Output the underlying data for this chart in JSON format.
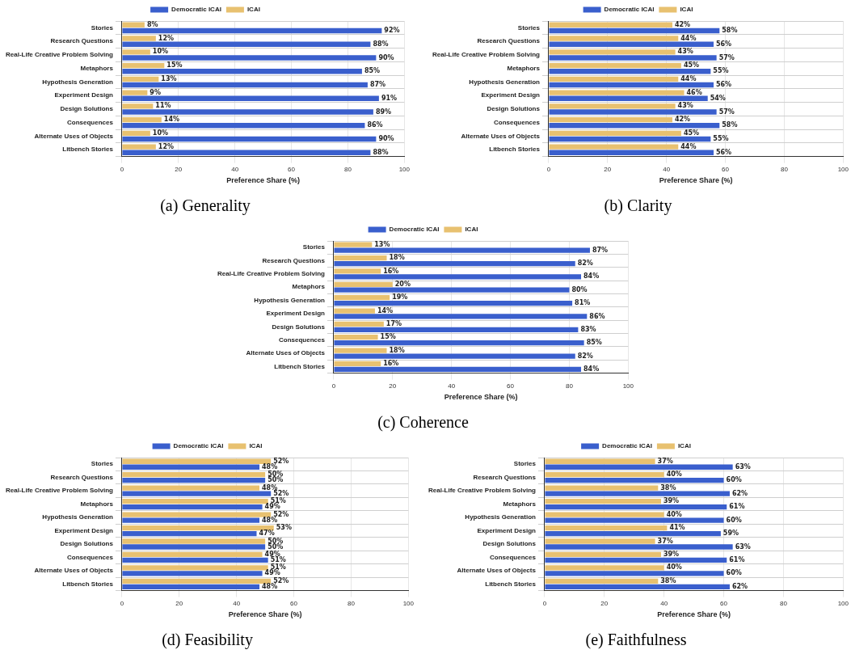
{
  "chart_data": [
    {
      "type": "bar",
      "orientation": "horizontal",
      "title": "(a) Generality",
      "xlabel": "Preference Share (%)",
      "categories": [
        "Stories",
        "Research Questions",
        "Real-Life Creative Problem Solving",
        "Metaphors",
        "Hypothesis Generation",
        "Experiment Design",
        "Design Solutions",
        "Consequences",
        "Alternate Uses of Objects",
        "Litbench Stories"
      ],
      "xlim": [
        0,
        100
      ],
      "xticks": [
        0,
        20,
        40,
        60,
        80,
        100
      ],
      "grid": true,
      "legend": "top",
      "series": [
        {
          "name": "Democratic ICAI",
          "color": "#3a5fcd",
          "values": [
            92,
            88,
            90,
            85,
            87,
            91,
            89,
            86,
            90,
            88
          ],
          "value_labels": [
            "92%",
            "88%",
            "90%",
            "85%",
            "87%",
            "91%",
            "89%",
            "86%",
            "90%",
            "88%"
          ]
        },
        {
          "name": "ICAI",
          "color": "#e8c170",
          "values": [
            8,
            12,
            10,
            15,
            13,
            9,
            11,
            14,
            10,
            12
          ],
          "value_labels": [
            "8%",
            "12%",
            "10%",
            "15%",
            "13%",
            "9%",
            "11%",
            "14%",
            "10%",
            "12%"
          ]
        }
      ]
    },
    {
      "type": "bar",
      "orientation": "horizontal",
      "title": "(b) Clarity",
      "xlabel": "Preference Share (%)",
      "categories": [
        "Stories",
        "Research Questions",
        "Real-Life Creative Problem Solving",
        "Metaphors",
        "Hypothesis Generation",
        "Experiment Design",
        "Design Solutions",
        "Consequences",
        "Alternate Uses of Objects",
        "Litbench Stories"
      ],
      "xlim": [
        0,
        100
      ],
      "xticks": [
        0,
        20,
        40,
        60,
        80,
        100
      ],
      "grid": true,
      "legend": "top",
      "series": [
        {
          "name": "Democratic ICAI",
          "color": "#3a5fcd",
          "values": [
            58,
            56,
            57,
            55,
            56,
            54,
            57,
            58,
            55,
            56
          ],
          "value_labels": [
            "58%",
            "56%",
            "57%",
            "55%",
            "56%",
            "54%",
            "57%",
            "58%",
            "55%",
            "56%"
          ]
        },
        {
          "name": "ICAI",
          "color": "#e8c170",
          "values": [
            42,
            44,
            43,
            45,
            44,
            46,
            43,
            42,
            45,
            44
          ],
          "value_labels": [
            "42%",
            "44%",
            "43%",
            "45%",
            "44%",
            "46%",
            "43%",
            "42%",
            "45%",
            "44%"
          ]
        }
      ]
    },
    {
      "type": "bar",
      "orientation": "horizontal",
      "title": "(c) Coherence",
      "xlabel": "Preference Share (%)",
      "categories": [
        "Stories",
        "Research Questions",
        "Real-Life Creative Problem Solving",
        "Metaphors",
        "Hypothesis Generation",
        "Experiment Design",
        "Design Solutions",
        "Consequences",
        "Alternate Uses of Objects",
        "Litbench Stories"
      ],
      "xlim": [
        0,
        100
      ],
      "xticks": [
        0,
        20,
        40,
        60,
        80,
        100
      ],
      "grid": true,
      "legend": "top",
      "series": [
        {
          "name": "Democratic ICAI",
          "color": "#3a5fcd",
          "values": [
            87,
            82,
            84,
            80,
            81,
            86,
            83,
            85,
            82,
            84
          ],
          "value_labels": [
            "87%",
            "82%",
            "84%",
            "80%",
            "81%",
            "86%",
            "83%",
            "85%",
            "82%",
            "84%"
          ]
        },
        {
          "name": "ICAI",
          "color": "#e8c170",
          "values": [
            13,
            18,
            16,
            20,
            19,
            14,
            17,
            15,
            18,
            16
          ],
          "value_labels": [
            "13%",
            "18%",
            "16%",
            "20%",
            "19%",
            "14%",
            "17%",
            "15%",
            "18%",
            "16%"
          ]
        }
      ]
    },
    {
      "type": "bar",
      "orientation": "horizontal",
      "title": "(d) Feasibility",
      "xlabel": "Preference Share (%)",
      "categories": [
        "Stories",
        "Research Questions",
        "Real-Life Creative Problem Solving",
        "Metaphors",
        "Hypothesis Generation",
        "Experiment Design",
        "Design Solutions",
        "Consequences",
        "Alternate Uses of Objects",
        "Litbench Stories"
      ],
      "xlim": [
        0,
        100
      ],
      "xticks": [
        0,
        20,
        40,
        60,
        80,
        100
      ],
      "grid": true,
      "legend": "top",
      "series": [
        {
          "name": "Democratic ICAI",
          "color": "#3a5fcd",
          "values": [
            48,
            50,
            52,
            49,
            48,
            47,
            50,
            51,
            49,
            48
          ],
          "value_labels": [
            "48%",
            "50%",
            "52%",
            "49%",
            "48%",
            "47%",
            "50%",
            "51%",
            "49%",
            "48%"
          ]
        },
        {
          "name": "ICAI",
          "color": "#e8c170",
          "values": [
            52,
            50,
            48,
            51,
            52,
            53,
            50,
            49,
            51,
            52
          ],
          "value_labels": [
            "52%",
            "50%",
            "48%",
            "51%",
            "52%",
            "53%",
            "50%",
            "49%",
            "51%",
            "52%"
          ]
        }
      ]
    },
    {
      "type": "bar",
      "orientation": "horizontal",
      "title": "(e) Faithfulness",
      "xlabel": "Preference Share (%)",
      "categories": [
        "Stories",
        "Research Questions",
        "Real-Life Creative Problem Solving",
        "Metaphors",
        "Hypothesis Generation",
        "Experiment Design",
        "Design Solutions",
        "Consequences",
        "Alternate Uses of Objects",
        "Litbench Stories"
      ],
      "xlim": [
        0,
        100
      ],
      "xticks": [
        0,
        20,
        40,
        60,
        80,
        100
      ],
      "grid": true,
      "legend": "top",
      "series": [
        {
          "name": "Democratic ICAI",
          "color": "#3a5fcd",
          "values": [
            63,
            60,
            62,
            61,
            60,
            59,
            63,
            61,
            60,
            62
          ],
          "value_labels": [
            "63%",
            "60%",
            "62%",
            "61%",
            "60%",
            "59%",
            "63%",
            "61%",
            "60%",
            "62%"
          ]
        },
        {
          "name": "ICAI",
          "color": "#e8c170",
          "values": [
            37,
            40,
            38,
            39,
            40,
            41,
            37,
            39,
            40,
            38
          ],
          "value_labels": [
            "37%",
            "40%",
            "38%",
            "39%",
            "40%",
            "41%",
            "37%",
            "39%",
            "40%",
            "38%"
          ]
        }
      ]
    }
  ]
}
